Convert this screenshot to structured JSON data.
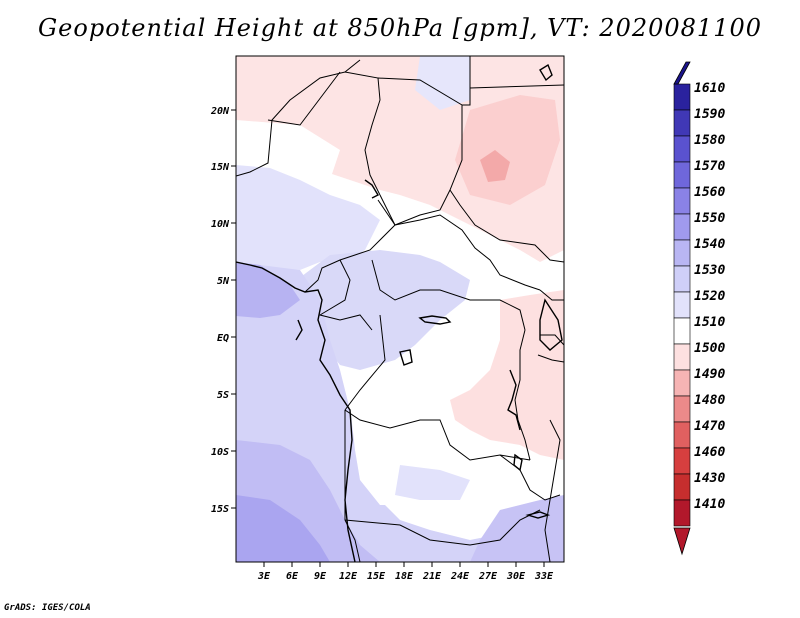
{
  "title": "Geopotential Height at 850hPa [gpm], VT: 2020081100",
  "footer": "GrADS: IGES/COLA",
  "map": {
    "lat_labels": [
      "20N",
      "15N",
      "10N",
      "5N",
      "EQ",
      "5S",
      "10S",
      "15S"
    ],
    "lon_labels": [
      "3E",
      "6E",
      "9E",
      "12E",
      "15E",
      "18E",
      "21E",
      "24E",
      "27E",
      "30E",
      "33E"
    ]
  },
  "colorbar": {
    "labels": [
      "1610",
      "1590",
      "1580",
      "1570",
      "1560",
      "1550",
      "1540",
      "1530",
      "1520",
      "1510",
      "1500",
      "1490",
      "1480",
      "1470",
      "1460",
      "1430",
      "1410"
    ],
    "colors": {
      "1410": "#b2182b",
      "1430": "#c62e2e",
      "1460": "#d63f3f",
      "1470": "#e06060",
      "1480": "#ec8a8a",
      "1490": "#f6b4b4",
      "1500": "#fde0e0",
      "1510": "#ffffff",
      "1520": "#e2e2fb",
      "1530": "#cfcff8",
      "1540": "#b9b6f3",
      "1550": "#a09aee",
      "1560": "#8a82e6",
      "1570": "#6f67db",
      "1580": "#5a52cf",
      "1590": "#4038b6",
      "1600": "#2a229e",
      "1610": "#1a148a"
    }
  }
}
